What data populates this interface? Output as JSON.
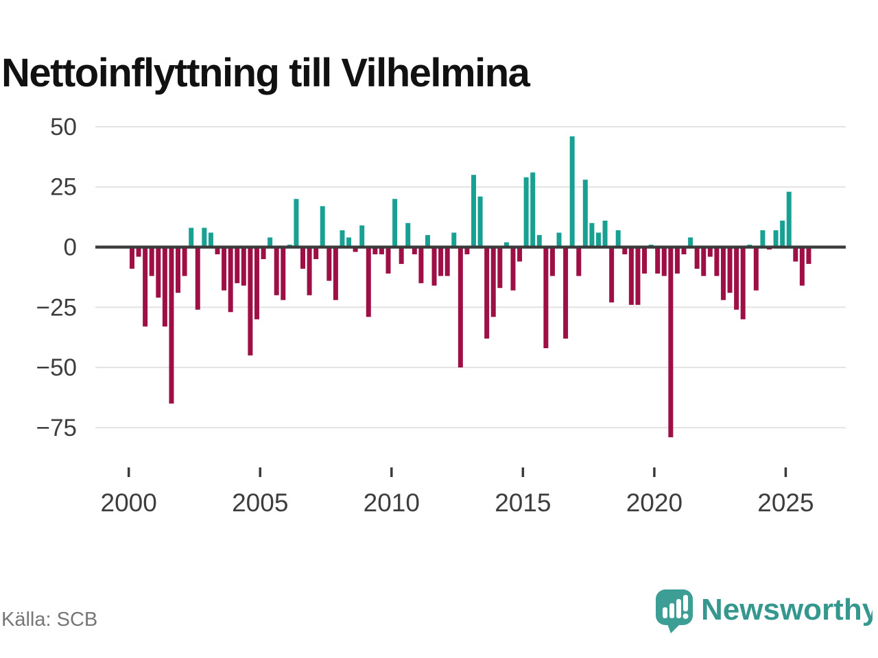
{
  "title": "Nettoinflyttning till Vilhelmina",
  "footer": {
    "source": "Källa: SCB",
    "brand": "Newsworthy"
  },
  "colors": {
    "positive": "#18A093",
    "negative": "#9E1045",
    "grid": "#E3E3E3",
    "zero_line": "#3B3B3B",
    "axis_text": "#3D3D3D",
    "title_text": "#111111",
    "source_text": "#767676",
    "brand_bubble": "#3D9E96",
    "brand_text": "#35978E"
  },
  "chart_data": {
    "type": "bar",
    "title": "Nettoinflyttning till Vilhelmina",
    "frequency": "quarterly",
    "grid": true,
    "legend": "none",
    "ylim": [
      -85,
      55
    ],
    "yticks": [
      {
        "label": "50",
        "value": 50
      },
      {
        "label": "25",
        "value": 25
      },
      {
        "label": "0",
        "value": 0
      },
      {
        "label": "−25",
        "value": -25
      },
      {
        "label": "−50",
        "value": -50
      },
      {
        "label": "−75",
        "value": -75
      }
    ],
    "xticks": [
      {
        "label": "2000",
        "year": 2000
      },
      {
        "label": "2005",
        "year": 2005
      },
      {
        "label": "2010",
        "year": 2010
      },
      {
        "label": "2015",
        "year": 2015
      },
      {
        "label": "2020",
        "year": 2020
      },
      {
        "label": "2025",
        "year": 2025
      }
    ],
    "categories": [
      "2000 Q1",
      "2000 Q2",
      "2000 Q3",
      "2000 Q4",
      "2001 Q1",
      "2001 Q2",
      "2001 Q3",
      "2001 Q4",
      "2002 Q1",
      "2002 Q2",
      "2002 Q3",
      "2002 Q4",
      "2003 Q1",
      "2003 Q2",
      "2003 Q3",
      "2003 Q4",
      "2004 Q1",
      "2004 Q2",
      "2004 Q3",
      "2004 Q4",
      "2005 Q1",
      "2005 Q2",
      "2005 Q3",
      "2005 Q4",
      "2006 Q1",
      "2006 Q2",
      "2006 Q3",
      "2006 Q4",
      "2007 Q1",
      "2007 Q2",
      "2007 Q3",
      "2007 Q4",
      "2008 Q1",
      "2008 Q2",
      "2008 Q3",
      "2008 Q4",
      "2009 Q1",
      "2009 Q2",
      "2009 Q3",
      "2009 Q4",
      "2010 Q1",
      "2010 Q2",
      "2010 Q3",
      "2010 Q4",
      "2011 Q1",
      "2011 Q2",
      "2011 Q3",
      "2011 Q4",
      "2012 Q1",
      "2012 Q2",
      "2012 Q3",
      "2012 Q4",
      "2013 Q1",
      "2013 Q2",
      "2013 Q3",
      "2013 Q4",
      "2014 Q1",
      "2014 Q2",
      "2014 Q3",
      "2014 Q4",
      "2015 Q1",
      "2015 Q2",
      "2015 Q3",
      "2015 Q4",
      "2016 Q1",
      "2016 Q2",
      "2016 Q3",
      "2016 Q4",
      "2017 Q1",
      "2017 Q2",
      "2017 Q3",
      "2017 Q4",
      "2018 Q1",
      "2018 Q2",
      "2018 Q3",
      "2018 Q4",
      "2019 Q1",
      "2019 Q2",
      "2019 Q3",
      "2019 Q4",
      "2020 Q1",
      "2020 Q2",
      "2020 Q3",
      "2020 Q4",
      "2021 Q1",
      "2021 Q2",
      "2021 Q3",
      "2021 Q4",
      "2022 Q1",
      "2022 Q2",
      "2022 Q3",
      "2022 Q4",
      "2023 Q1",
      "2023 Q2",
      "2023 Q3",
      "2023 Q4",
      "2024 Q1",
      "2024 Q2",
      "2024 Q3",
      "2024 Q4",
      "2025 Q1",
      "2025 Q2",
      "2025 Q3",
      "2025 Q4"
    ],
    "values": [
      -9,
      -4,
      -33,
      -12,
      -21,
      -33,
      -65,
      -19,
      -12,
      8,
      -26,
      8,
      6,
      -3,
      -18,
      -27,
      -15,
      -16,
      -45,
      -30,
      -5,
      4,
      -20,
      -22,
      1,
      20,
      -9,
      -20,
      -5,
      17,
      -14,
      -22,
      7,
      4,
      -2,
      9,
      -29,
      -3,
      -3,
      -11,
      20,
      -7,
      10,
      -3,
      -15,
      5,
      -16,
      -12,
      -12,
      6,
      -50,
      -3,
      30,
      21,
      -38,
      -29,
      -17,
      2,
      -18,
      -6,
      29,
      31,
      5,
      -42,
      -12,
      6,
      -38,
      46,
      -12,
      28,
      10,
      6,
      11,
      -23,
      7,
      -3,
      -24,
      -24,
      -11,
      1,
      -11,
      -12,
      -79,
      -11,
      -3,
      4,
      -9,
      -12,
      -4,
      -12,
      -22,
      -19,
      -26,
      -30,
      1,
      -18,
      7,
      -1,
      7,
      11,
      23,
      -6,
      -16,
      -7
    ]
  }
}
